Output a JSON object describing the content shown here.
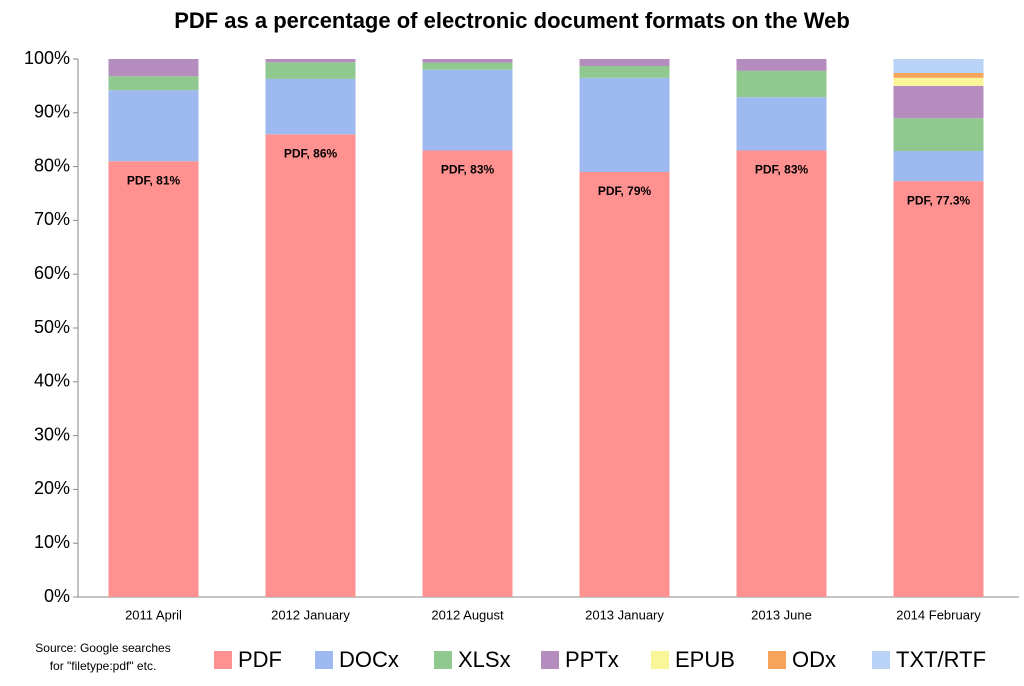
{
  "chart_data": {
    "type": "stacked_bar",
    "title": "PDF as a percentage of electronic document formats on the Web",
    "categories": [
      "2011 April",
      "2012 January",
      "2012 August",
      "2013 January",
      "2013 June",
      "2014 February"
    ],
    "series": [
      {
        "name": "PDF",
        "color": "#ff9290",
        "values": [
          81,
          86,
          83,
          79,
          83,
          77.3
        ],
        "value_labels": [
          "PDF, 81%",
          "PDF, 86%",
          "PDF, 83%",
          "PDF, 79%",
          "PDF, 83%",
          "PDF, 77.3%"
        ]
      },
      {
        "name": "DOCx",
        "color": "#9db9f0",
        "values": [
          13.2,
          10.3,
          15,
          17.5,
          9.9,
          5.6
        ]
      },
      {
        "name": "XLSx",
        "color": "#8fc98f",
        "values": [
          2.6,
          3.1,
          1.3,
          2.2,
          4.9,
          6.1
        ]
      },
      {
        "name": "PPTx",
        "color": "#b48cbd",
        "values": [
          3.2,
          0.6,
          0.7,
          1.3,
          2.2,
          6
        ]
      },
      {
        "name": "EPUB",
        "color": "#fbf59a",
        "values": [
          0,
          0,
          0,
          0,
          0,
          1.5
        ]
      },
      {
        "name": "ODx",
        "color": "#f6a35c",
        "values": [
          0,
          0,
          0,
          0,
          0,
          0.9
        ]
      },
      {
        "name": "TXT/RTF",
        "color": "#b8d3f5",
        "values": [
          0,
          0,
          0,
          0,
          0,
          2.6
        ]
      }
    ],
    "ylim": [
      0,
      100
    ],
    "yticks": [
      {
        "value": 0,
        "label": "0%"
      },
      {
        "value": 10,
        "label": "10%"
      },
      {
        "value": 20,
        "label": "20%"
      },
      {
        "value": 30,
        "label": "30%"
      },
      {
        "value": 40,
        "label": "40%"
      },
      {
        "value": 50,
        "label": "50%"
      },
      {
        "value": 60,
        "label": "60%"
      },
      {
        "value": 70,
        "label": "70%"
      },
      {
        "value": 80,
        "label": "80%"
      },
      {
        "value": 90,
        "label": "90%"
      },
      {
        "value": 100,
        "label": "100%"
      }
    ],
    "source": [
      "Source: Google searches",
      "for \"filetype:pdf\" etc."
    ],
    "legend": "bottom"
  }
}
